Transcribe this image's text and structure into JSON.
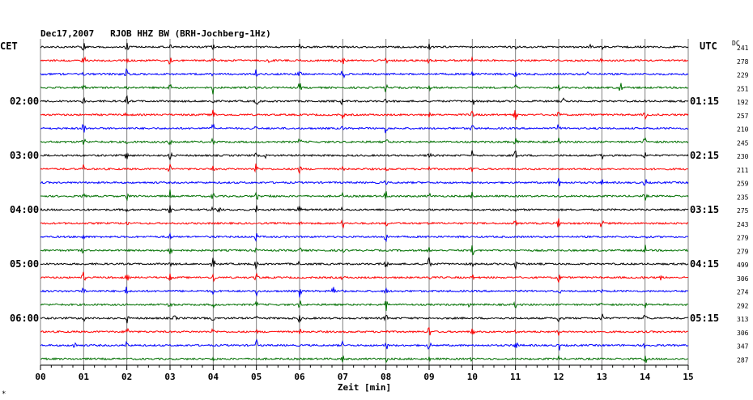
{
  "header": {
    "title": "Dec17,2007   RJOB HHZ BW (BRH-Jochberg-1Hz)",
    "cet_label": "CET",
    "utc_label": "UTC",
    "dc_label": "DC"
  },
  "footer": {
    "corner_mark": "*"
  },
  "chart_data": {
    "type": "line",
    "title": "Dec17,2007   RJOB HHZ BW (BRH-Jochberg-1Hz)",
    "xlabel": "Zeit [min]",
    "ylabel": "",
    "xlim": [
      0,
      15
    ],
    "x_ticks": [
      "00",
      "01",
      "02",
      "03",
      "04",
      "05",
      "06",
      "07",
      "08",
      "09",
      "10",
      "11",
      "12",
      "13",
      "14",
      "15"
    ],
    "grid": true,
    "trace_colors": [
      "#000000",
      "#ff0000",
      "#0000ff",
      "#007000"
    ],
    "trace_count": 24,
    "cet_hour_labels": [
      "02:00",
      "03:00",
      "04:00",
      "05:00",
      "06:00"
    ],
    "utc_hour_labels": [
      "01:15",
      "02:15",
      "03:15",
      "04:15",
      "05:15"
    ],
    "dc_values": [
      241,
      278,
      229,
      251,
      192,
      257,
      210,
      245,
      230,
      211,
      259,
      235,
      275,
      243,
      279,
      279,
      499,
      306,
      274,
      292,
      313,
      306,
      347,
      287
    ]
  }
}
